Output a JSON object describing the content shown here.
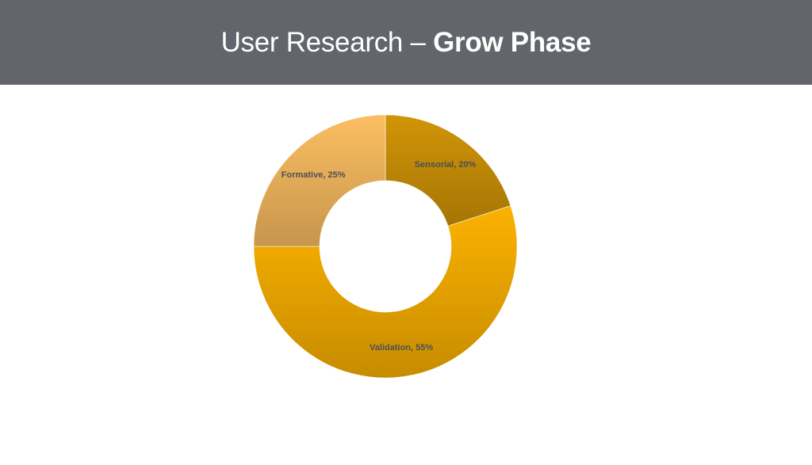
{
  "header": {
    "title_light": "User Research – ",
    "title_bold": "Grow Phase"
  },
  "chart_data": {
    "type": "pie",
    "variant": "donut",
    "slices": [
      {
        "label": "Sensorial, 20%",
        "category": "Sensorial",
        "value": 20,
        "color": "#c98f06"
      },
      {
        "label": "Validation, 55%",
        "category": "Validation",
        "value": 55,
        "color": "#f2ab00"
      },
      {
        "label": "Formative, 25%",
        "category": "Formative",
        "value": 25,
        "color": "#f2b75e"
      }
    ],
    "start_angle_deg": 0,
    "direction": "clockwise",
    "legend": "none"
  },
  "colors": {
    "header_bg": "#62656c",
    "header_text": "#ffffff",
    "label_text": "#4a4f57"
  }
}
